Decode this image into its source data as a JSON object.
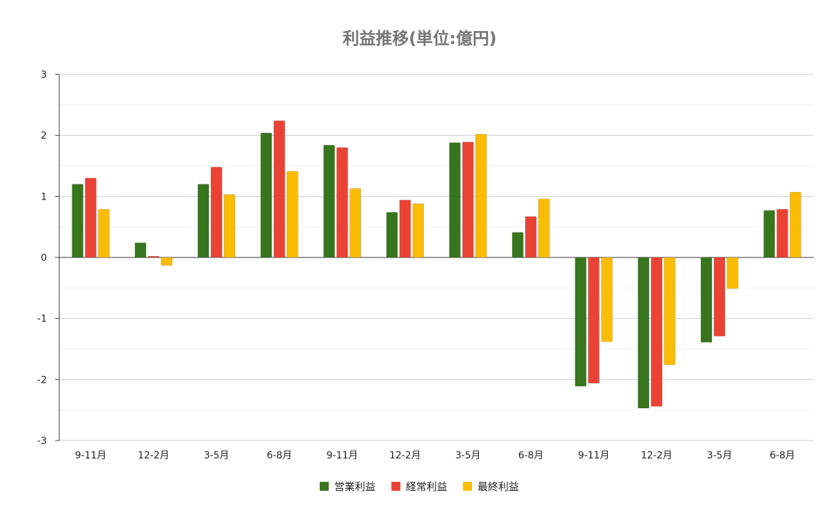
{
  "chart_data": {
    "type": "bar",
    "title": "利益推移(単位:億円)",
    "categories": [
      "9-11月",
      "12-2月",
      "3-5月",
      "6-8月",
      "9-11月",
      "12-2月",
      "3-5月",
      "6-8月",
      "9-11月",
      "12-2月",
      "3-5月",
      "6-8月"
    ],
    "series": [
      {
        "name": "営業利益",
        "color": "#38761d",
        "values": [
          1.2,
          0.24,
          1.2,
          2.04,
          1.84,
          0.74,
          1.88,
          0.41,
          -2.11,
          -2.47,
          -1.39,
          0.77
        ]
      },
      {
        "name": "経常利益",
        "color": "#ea4335",
        "values": [
          1.3,
          0.02,
          1.48,
          2.24,
          1.8,
          0.94,
          1.89,
          0.67,
          -2.06,
          -2.44,
          -1.29,
          0.79
        ]
      },
      {
        "name": "最終利益",
        "color": "#fbbc04",
        "values": [
          0.79,
          -0.13,
          1.03,
          1.41,
          1.13,
          0.88,
          2.02,
          0.96,
          -1.38,
          -1.76,
          -0.51,
          1.07
        ]
      }
    ],
    "ylim": [
      -3,
      3
    ],
    "yticks": [
      -3,
      -2,
      -1,
      0,
      1,
      2,
      3
    ],
    "minor_gridlines": true,
    "legend_position": "bottom"
  }
}
